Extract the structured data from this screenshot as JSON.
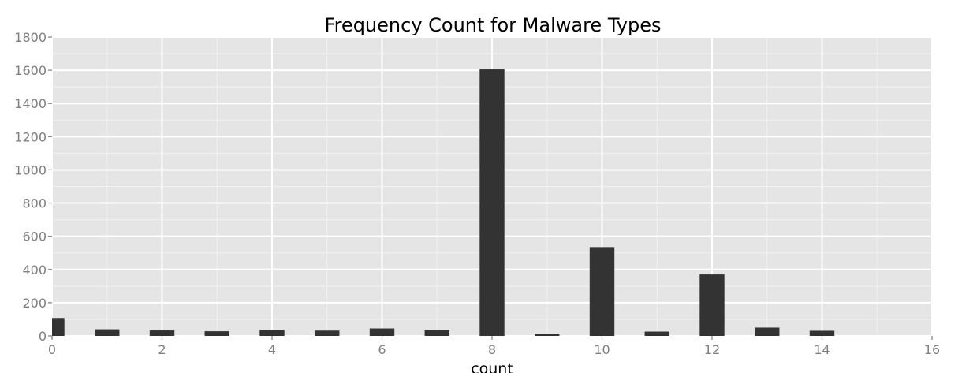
{
  "chart_data": {
    "type": "bar",
    "title": "Frequency Count for Malware Types",
    "xlabel": "count",
    "ylabel": "",
    "xlim": [
      0,
      16
    ],
    "ylim": [
      0,
      1800
    ],
    "xticks": [
      0,
      2,
      4,
      6,
      8,
      10,
      12,
      14,
      16
    ],
    "yticks": [
      0,
      200,
      400,
      600,
      800,
      1000,
      1200,
      1400,
      1600,
      1800
    ],
    "grid": true,
    "bar_width": 0.45,
    "bar_color": "#333333",
    "panel_background": "#e5e5e5",
    "grid_color": "#ffffff",
    "bars": [
      {
        "x": 0,
        "value": 108
      },
      {
        "x": 1,
        "value": 40
      },
      {
        "x": 2,
        "value": 33
      },
      {
        "x": 3,
        "value": 28
      },
      {
        "x": 4,
        "value": 36
      },
      {
        "x": 5,
        "value": 32
      },
      {
        "x": 6,
        "value": 45
      },
      {
        "x": 7,
        "value": 36
      },
      {
        "x": 8,
        "value": 1605
      },
      {
        "x": 9,
        "value": 12
      },
      {
        "x": 10,
        "value": 535
      },
      {
        "x": 11,
        "value": 26
      },
      {
        "x": 12,
        "value": 370
      },
      {
        "x": 13,
        "value": 50
      },
      {
        "x": 14,
        "value": 31
      }
    ]
  }
}
